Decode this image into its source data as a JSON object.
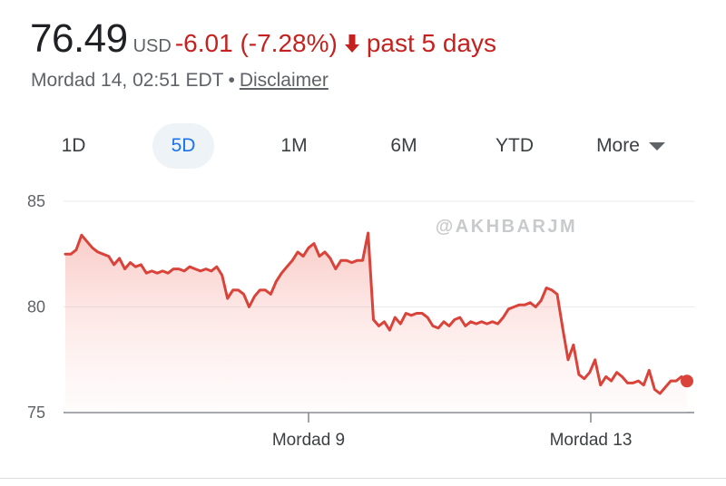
{
  "quote": {
    "price": "76.49",
    "currency": "USD",
    "change": "-6.01 (-7.28%)",
    "period": "past 5 days",
    "timestamp": "Mordad 14, 02:51 EDT",
    "separator": "•",
    "disclaimer": "Disclaimer"
  },
  "tabs": [
    {
      "label": "1D",
      "active": false
    },
    {
      "label": "5D",
      "active": true
    },
    {
      "label": "1M",
      "active": false
    },
    {
      "label": "6M",
      "active": false
    },
    {
      "label": "YTD",
      "active": false
    },
    {
      "label": "More",
      "active": false
    }
  ],
  "colors": {
    "negative": "#c5221f",
    "line": "#d9433a",
    "accent": "#1a73e8"
  },
  "watermark": "@AKHBARJM",
  "chart_data": {
    "type": "line",
    "title": "",
    "xlabel": "",
    "ylabel": "",
    "ylim": [
      75,
      85
    ],
    "yticks": [
      75,
      80,
      85
    ],
    "xticks": [
      "Mordad 9",
      "Mordad 13"
    ],
    "grid": true,
    "series": [
      {
        "values": [
          82.5,
          82.5,
          82.7,
          83.4,
          83.1,
          82.8,
          82.6,
          82.5,
          82.4,
          82.0,
          82.3,
          81.8,
          82.1,
          81.9,
          82.0,
          81.6,
          81.7,
          81.6,
          81.7,
          81.6,
          81.8,
          81.8,
          81.7,
          81.9,
          81.8,
          81.7,
          81.8,
          81.7,
          81.9,
          81.5,
          80.4,
          80.8,
          80.8,
          80.6,
          80.0,
          80.5,
          80.8,
          80.8,
          80.6,
          81.2,
          81.6,
          81.9,
          82.2,
          82.6,
          82.4,
          82.8,
          83.0,
          82.4,
          82.6,
          82.3,
          81.8,
          82.2,
          82.2,
          82.1,
          82.2,
          82.2,
          83.5,
          79.4,
          79.1,
          79.3,
          78.9,
          79.5,
          79.2,
          79.7,
          79.6,
          79.7,
          79.7,
          79.5,
          79.1,
          79.0,
          79.3,
          79.1,
          79.4,
          79.5,
          79.1,
          79.3,
          79.2,
          79.3,
          79.2,
          79.3,
          79.2,
          79.5,
          79.9,
          80.0,
          80.1,
          80.1,
          80.2,
          80.0,
          80.3,
          80.9,
          80.8,
          80.6,
          79.0,
          77.5,
          78.2,
          76.8,
          76.6,
          76.9,
          77.5,
          76.3,
          76.7,
          76.5,
          76.9,
          76.7,
          76.4,
          76.4,
          76.5,
          76.3,
          77.0,
          76.1,
          75.9,
          76.2,
          76.5,
          76.5,
          76.7,
          76.49
        ]
      }
    ]
  }
}
